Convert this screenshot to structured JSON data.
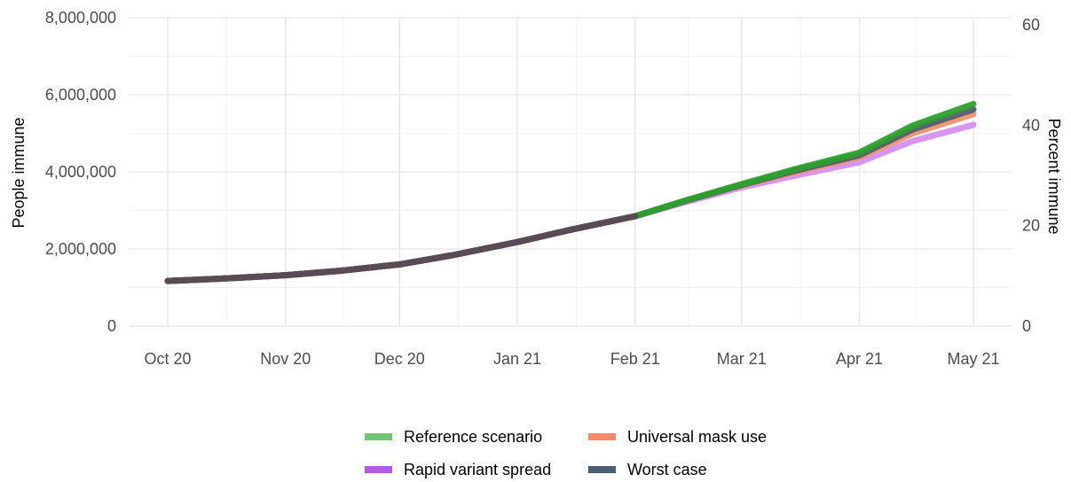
{
  "chart_data": {
    "type": "line",
    "x_axis": {
      "type": "date",
      "ticks": [
        {
          "date": "2020-10-01",
          "label": "Oct 20"
        },
        {
          "date": "2020-11-01",
          "label": "Nov 20"
        },
        {
          "date": "2020-12-01",
          "label": "Dec 20"
        },
        {
          "date": "2021-01-01",
          "label": "Jan 21"
        },
        {
          "date": "2021-02-01",
          "label": "Feb 21"
        },
        {
          "date": "2021-03-01",
          "label": "Mar 21"
        },
        {
          "date": "2021-04-01",
          "label": "Apr 21"
        },
        {
          "date": "2021-05-01",
          "label": "May 21"
        }
      ]
    },
    "y_axis": {
      "label": "People immune",
      "range": [
        0,
        8000000
      ],
      "ticks": [
        {
          "value": 0,
          "label": "0"
        },
        {
          "value": 2000000,
          "label": "2,000,000"
        },
        {
          "value": 4000000,
          "label": "4,000,000"
        },
        {
          "value": 6000000,
          "label": "6,000,000"
        },
        {
          "value": 8000000,
          "label": "8,000,000"
        }
      ]
    },
    "y2_axis": {
      "label": "Percent immune",
      "range": [
        0,
        60
      ],
      "ticks": [
        {
          "value": 0,
          "label": "0"
        },
        {
          "value": 20,
          "label": "20"
        },
        {
          "value": 40,
          "label": "40"
        },
        {
          "value": 60,
          "label": "60"
        }
      ]
    },
    "grid": true,
    "legend_position": "bottom",
    "series": [
      {
        "name": "Reference scenario",
        "color": "#2ca02c",
        "legend_color": "#74c476",
        "points": [
          [
            "2020-10-01",
            1170000
          ],
          [
            "2020-10-15",
            1230000
          ],
          [
            "2020-11-01",
            1320000
          ],
          [
            "2020-11-15",
            1430000
          ],
          [
            "2020-12-01",
            1600000
          ],
          [
            "2020-12-15",
            1840000
          ],
          [
            "2021-01-01",
            2180000
          ],
          [
            "2021-01-15",
            2500000
          ],
          [
            "2021-02-01",
            2850000
          ],
          [
            "2021-02-15",
            3280000
          ],
          [
            "2021-03-01",
            3680000
          ],
          [
            "2021-03-15",
            4070000
          ],
          [
            "2021-04-01",
            4500000
          ],
          [
            "2021-04-15",
            5200000
          ],
          [
            "2021-05-01",
            5760000
          ]
        ]
      },
      {
        "name": "Universal mask use",
        "color": "#f0926a",
        "legend_color": "#f08c6a",
        "points": [
          [
            "2020-10-01",
            1170000
          ],
          [
            "2020-10-15",
            1230000
          ],
          [
            "2020-11-01",
            1320000
          ],
          [
            "2020-11-15",
            1430000
          ],
          [
            "2020-12-01",
            1600000
          ],
          [
            "2020-12-15",
            1840000
          ],
          [
            "2021-01-01",
            2180000
          ],
          [
            "2021-01-15",
            2500000
          ],
          [
            "2021-02-01",
            2850000
          ],
          [
            "2021-02-15",
            3280000
          ],
          [
            "2021-03-01",
            3650000
          ],
          [
            "2021-03-15",
            3990000
          ],
          [
            "2021-04-01",
            4380000
          ],
          [
            "2021-04-15",
            5000000
          ],
          [
            "2021-05-01",
            5500000
          ]
        ]
      },
      {
        "name": "Rapid variant spread",
        "color": "#d58ff0",
        "legend_color": "#b05ce8",
        "points": [
          [
            "2020-10-01",
            1170000
          ],
          [
            "2020-10-15",
            1230000
          ],
          [
            "2020-11-01",
            1320000
          ],
          [
            "2020-11-15",
            1430000
          ],
          [
            "2020-12-01",
            1600000
          ],
          [
            "2020-12-15",
            1840000
          ],
          [
            "2021-01-01",
            2180000
          ],
          [
            "2021-01-15",
            2500000
          ],
          [
            "2021-02-01",
            2850000
          ],
          [
            "2021-02-15",
            3240000
          ],
          [
            "2021-03-01",
            3600000
          ],
          [
            "2021-03-15",
            3900000
          ],
          [
            "2021-04-01",
            4250000
          ],
          [
            "2021-04-15",
            4800000
          ],
          [
            "2021-05-01",
            5220000
          ]
        ]
      },
      {
        "name": "Worst case",
        "color": "#52606e",
        "legend_color": "#4a6072",
        "points": [
          [
            "2020-10-01",
            1170000
          ],
          [
            "2020-10-15",
            1230000
          ],
          [
            "2020-11-01",
            1320000
          ],
          [
            "2020-11-15",
            1430000
          ],
          [
            "2020-12-01",
            1600000
          ],
          [
            "2020-12-15",
            1840000
          ],
          [
            "2021-01-01",
            2180000
          ],
          [
            "2021-01-15",
            2500000
          ],
          [
            "2021-02-01",
            2850000
          ],
          [
            "2021-02-15",
            3270000
          ],
          [
            "2021-03-01",
            3660000
          ],
          [
            "2021-03-15",
            4030000
          ],
          [
            "2021-04-01",
            4430000
          ],
          [
            "2021-04-15",
            5100000
          ],
          [
            "2021-05-01",
            5620000
          ]
        ]
      }
    ],
    "overlap_color": "#5a4a55"
  }
}
